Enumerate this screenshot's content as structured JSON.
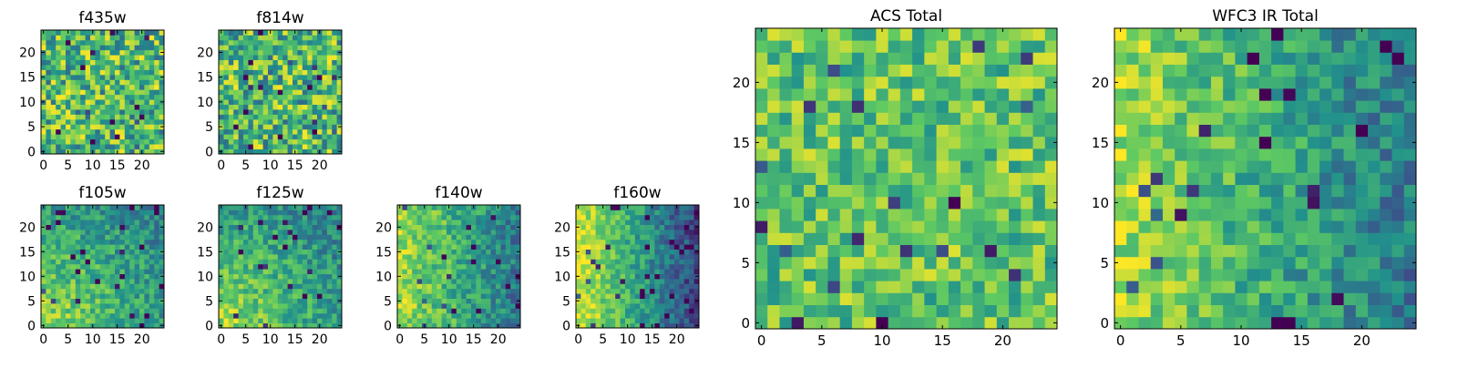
{
  "colormap": [
    "#440154",
    "#3b528b",
    "#21918c",
    "#5ec962",
    "#fde725"
  ],
  "chart_data": [
    {
      "type": "heatmap",
      "title": "f435w",
      "grid_size": 25,
      "xlim": [
        -0.5,
        24.5
      ],
      "ylim": [
        -0.5,
        24.5
      ],
      "xticks": [
        0,
        5,
        10,
        15,
        20
      ],
      "yticks": [
        0,
        5,
        10,
        15,
        20
      ],
      "pattern": "uniform-noise",
      "seed": 11
    },
    {
      "type": "heatmap",
      "title": "f814w",
      "grid_size": 25,
      "xlim": [
        -0.5,
        24.5
      ],
      "ylim": [
        -0.5,
        24.5
      ],
      "xticks": [
        0,
        5,
        10,
        15,
        20
      ],
      "yticks": [
        0,
        5,
        10,
        15,
        20
      ],
      "pattern": "uniform-noise",
      "seed": 23
    },
    {
      "type": "heatmap",
      "title": "f105w",
      "grid_size": 25,
      "xlim": [
        -0.5,
        24.5
      ],
      "ylim": [
        -0.5,
        24.5
      ],
      "xticks": [
        0,
        5,
        10,
        15,
        20
      ],
      "yticks": [
        0,
        5,
        10,
        15,
        20
      ],
      "pattern": "bright-lower-left",
      "seed": 37
    },
    {
      "type": "heatmap",
      "title": "f125w",
      "grid_size": 25,
      "xlim": [
        -0.5,
        24.5
      ],
      "ylim": [
        -0.5,
        24.5
      ],
      "xticks": [
        0,
        5,
        10,
        15,
        20
      ],
      "yticks": [
        0,
        5,
        10,
        15,
        20
      ],
      "pattern": "bright-lower-left",
      "seed": 41
    },
    {
      "type": "heatmap",
      "title": "f140w",
      "grid_size": 25,
      "xlim": [
        -0.5,
        24.5
      ],
      "ylim": [
        -0.5,
        24.5
      ],
      "xticks": [
        0,
        5,
        10,
        15,
        20
      ],
      "yticks": [
        0,
        5,
        10,
        15,
        20
      ],
      "pattern": "bright-left",
      "seed": 53
    },
    {
      "type": "heatmap",
      "title": "f160w",
      "grid_size": 25,
      "xlim": [
        -0.5,
        24.5
      ],
      "ylim": [
        -0.5,
        24.5
      ],
      "xticks": [
        0,
        5,
        10,
        15,
        20
      ],
      "yticks": [
        0,
        5,
        10,
        15,
        20
      ],
      "pattern": "bright-left-strong",
      "seed": 67
    },
    {
      "type": "heatmap",
      "title": "ACS Total",
      "grid_size": 25,
      "xlim": [
        -0.5,
        24.5
      ],
      "ylim": [
        -0.5,
        24.5
      ],
      "xticks": [
        0,
        5,
        10,
        15,
        20
      ],
      "yticks": [
        0,
        5,
        10,
        15,
        20
      ],
      "pattern": "uniform-bright",
      "seed": 79
    },
    {
      "type": "heatmap",
      "title": "WFC3 IR Total",
      "grid_size": 25,
      "xlim": [
        -0.5,
        24.5
      ],
      "ylim": [
        -0.5,
        24.5
      ],
      "xticks": [
        0,
        5,
        10,
        15,
        20
      ],
      "yticks": [
        0,
        5,
        10,
        15,
        20
      ],
      "pattern": "bright-left",
      "seed": 97
    }
  ]
}
